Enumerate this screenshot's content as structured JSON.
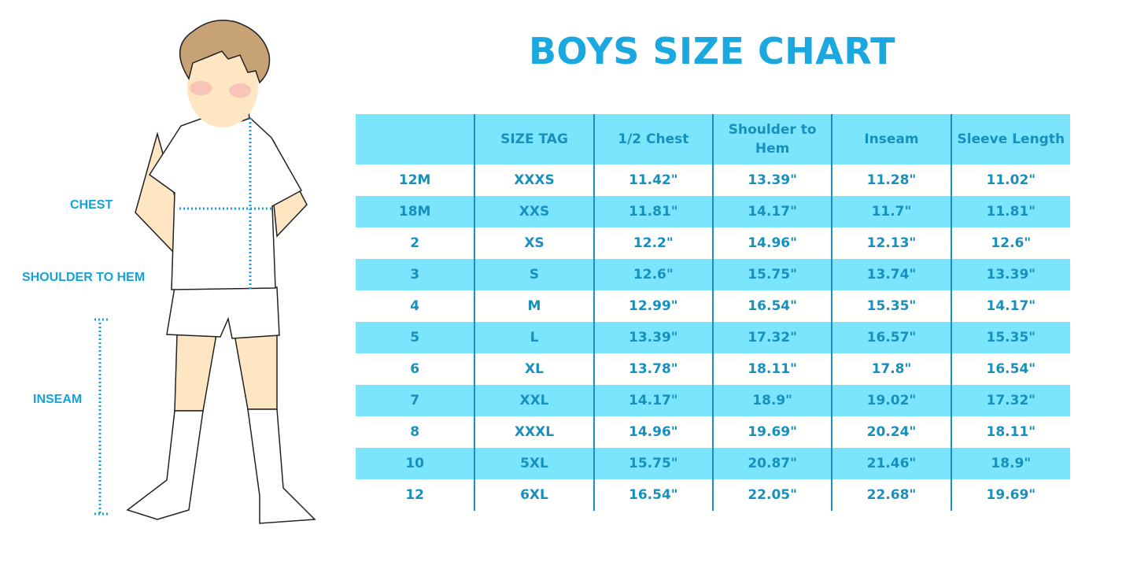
{
  "title": "BOYS SIZE CHART",
  "figure_labels": {
    "chest": "CHEST",
    "shoulder_to_hem": "SHOULDER TO HEM",
    "inseam": "INSEAM"
  },
  "colors": {
    "header_bg": "#7ae5fc",
    "text": "#1790bd",
    "title": "#1ba7df",
    "measure_line": "#12a3da"
  },
  "table": {
    "headers": [
      "",
      "SIZE TAG",
      "1/2 Chest",
      "Shoulder to Hem",
      "Inseam",
      "Sleeve Length"
    ],
    "rows": [
      [
        "12M",
        "XXXS",
        "11.42\"",
        "13.39\"",
        "11.28\"",
        "11.02\""
      ],
      [
        "18M",
        "XXS",
        "11.81\"",
        "14.17\"",
        "11.7\"",
        "11.81\""
      ],
      [
        "2",
        "XS",
        "12.2\"",
        "14.96\"",
        "12.13\"",
        "12.6\""
      ],
      [
        "3",
        "S",
        "12.6\"",
        "15.75\"",
        "13.74\"",
        "13.39\""
      ],
      [
        "4",
        "M",
        "12.99\"",
        "16.54\"",
        "15.35\"",
        "14.17\""
      ],
      [
        "5",
        "L",
        "13.39\"",
        "17.32\"",
        "16.57\"",
        "15.35\""
      ],
      [
        "6",
        "XL",
        "13.78\"",
        "18.11\"",
        "17.8\"",
        "16.54\""
      ],
      [
        "7",
        "XXL",
        "14.17\"",
        "18.9\"",
        "19.02\"",
        "17.32\""
      ],
      [
        "8",
        "XXXL",
        "14.96\"",
        "19.69\"",
        "20.24\"",
        "18.11\""
      ],
      [
        "10",
        "5XL",
        "15.75\"",
        "20.87\"",
        "21.46\"",
        "18.9\""
      ],
      [
        "12",
        "6XL",
        "16.54\"",
        "22.05\"",
        "22.68\"",
        "19.69\""
      ]
    ]
  }
}
